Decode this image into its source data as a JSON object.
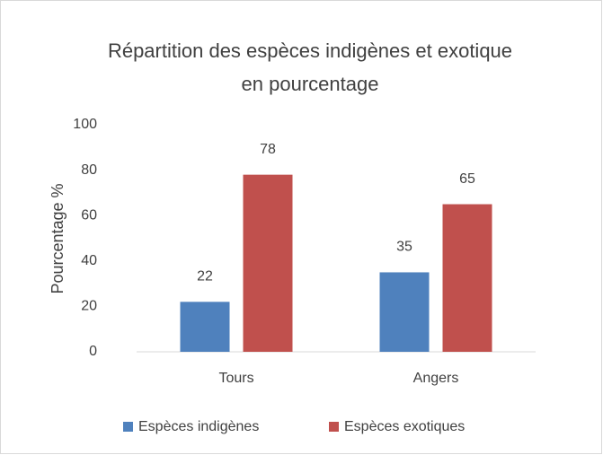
{
  "chart_data": {
    "type": "bar",
    "title": "Répartition des espèces indigènes et exotique en pourcentage",
    "y_label": "Pourcentage %",
    "categories": [
      "Tours",
      "Angers"
    ],
    "series": [
      {
        "name": "Espèces indigènes",
        "color": "#4f81bd",
        "values": [
          22,
          35
        ]
      },
      {
        "name": "Espèces exotiques",
        "color": "#c0504d",
        "values": [
          78,
          65
        ]
      }
    ],
    "ylim": [
      0,
      100
    ],
    "yticks": [
      0,
      20,
      40,
      60,
      80,
      100
    ],
    "grid": false,
    "legend": "bottom"
  }
}
